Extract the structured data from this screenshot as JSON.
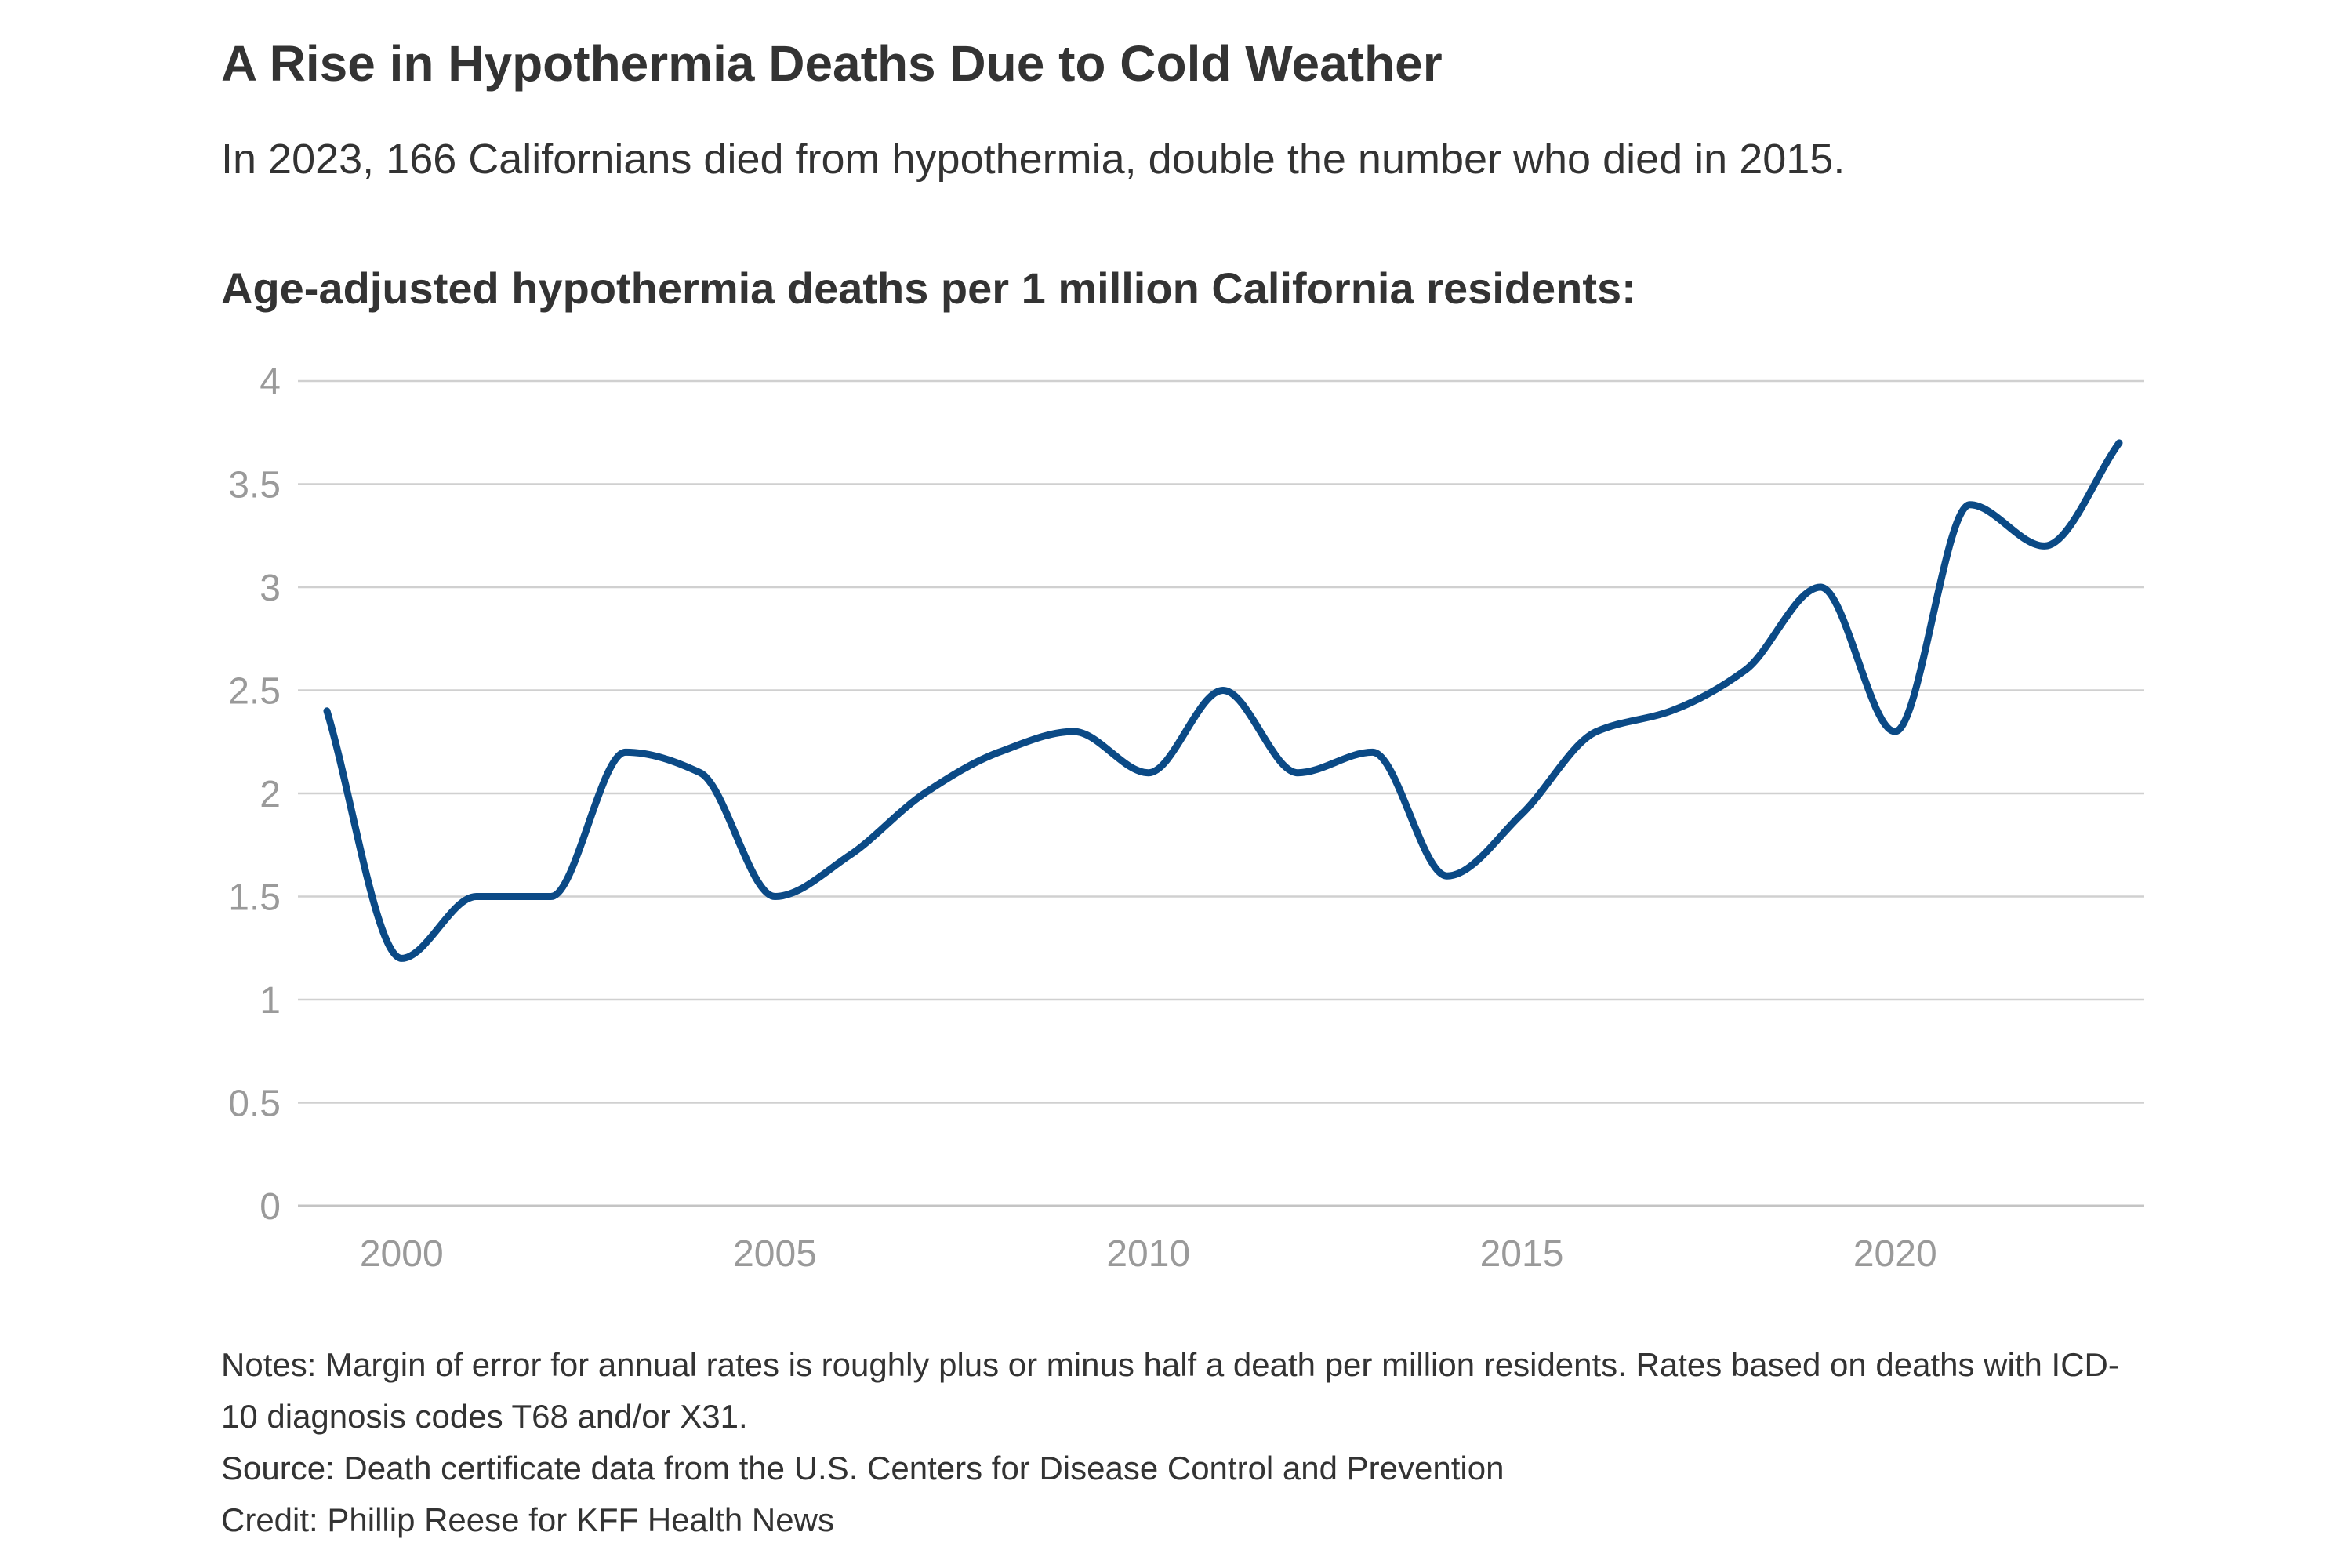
{
  "header": {
    "title": "A Rise in Hypothermia Deaths Due to Cold Weather",
    "subtitle": "In 2023, 166 Californians died from hypothermia, double the number who died in 2015."
  },
  "footer": {
    "notes": "Notes: Margin of error for annual rates is roughly plus or minus half a death per million residents. Rates based on deaths with ICD-10 diagnosis codes T68 and/or X31.",
    "source": "Source: Death certificate data from the U.S. Centers for Disease Control and Prevention",
    "credit": "Credit: Phillip Reese for KFF Health News"
  },
  "chart_data": {
    "type": "line",
    "title": "A Rise in Hypothermia Deaths Due to Cold Weather",
    "subtitle": "In 2023, 166 Californians died from hypothermia, double the number who died in 2015.",
    "ylabel": "Age-adjusted hypothermia deaths per 1 million California residents:",
    "xlabel": "",
    "x": [
      1999,
      2000,
      2001,
      2002,
      2003,
      2004,
      2005,
      2006,
      2007,
      2008,
      2009,
      2010,
      2011,
      2012,
      2013,
      2014,
      2015,
      2016,
      2017,
      2018,
      2019,
      2020,
      2021,
      2022,
      2023
    ],
    "series": [
      {
        "name": "Hypothermia deaths per 1 million residents",
        "color": "#0b4a86",
        "values": [
          2.4,
          1.2,
          1.5,
          1.5,
          2.2,
          2.1,
          1.5,
          1.7,
          2.0,
          2.2,
          2.3,
          2.1,
          2.5,
          2.1,
          2.2,
          1.6,
          1.9,
          2.3,
          2.4,
          2.6,
          3.0,
          2.3,
          3.4,
          3.2,
          3.7
        ]
      }
    ],
    "xlim": [
      1999,
      2023
    ],
    "ylim": [
      0,
      4
    ],
    "y_ticks": [
      0,
      0.5,
      1,
      1.5,
      2,
      2.5,
      3,
      3.5,
      4
    ],
    "y_tick_labels": [
      "0",
      "0.5",
      "1",
      "1.5",
      "2",
      "2.5",
      "3",
      "3.5",
      "4"
    ],
    "x_ticks": [
      2000,
      2005,
      2010,
      2015,
      2020
    ],
    "x_tick_labels": [
      "2000",
      "2005",
      "2010",
      "2015",
      "2020"
    ],
    "grid": true,
    "legend": "none"
  }
}
